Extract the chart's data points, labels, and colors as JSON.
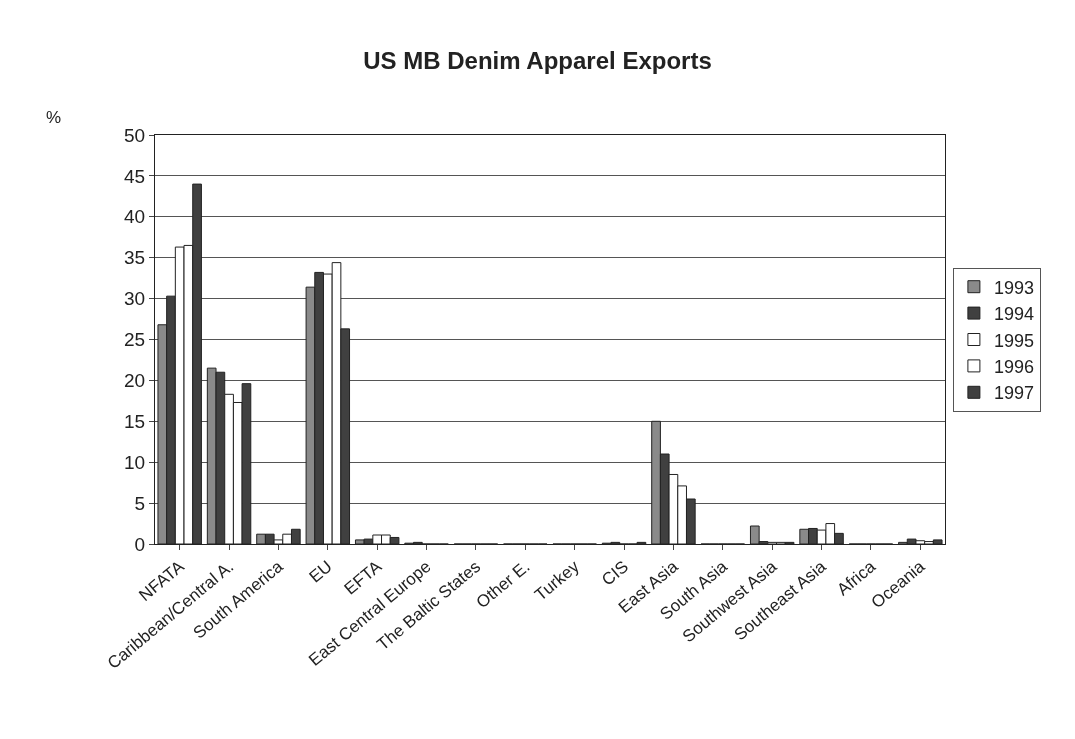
{
  "chart_data": {
    "type": "bar",
    "title": "US MB Denim Apparel Exports",
    "ylabel": "%",
    "categories": [
      "NFATA",
      "Caribbean/Central A.",
      "South America",
      "EU",
      "EFTA",
      "East Central Europe",
      "The Baltic States",
      "Other E.",
      "Turkey",
      "CIS",
      "East Asia",
      "South Asia",
      "Southwest Asia",
      "Southeast Asia",
      "Africa",
      "Oceania"
    ],
    "series": [
      {
        "name": "1993",
        "color": "#8a8a8a",
        "values": [
          26.8,
          21.5,
          1.2,
          31.4,
          0.5,
          0.1,
          0,
          0,
          0,
          0.1,
          15.0,
          0,
          2.2,
          1.8,
          0,
          0.2
        ]
      },
      {
        "name": "1994",
        "color": "#404040",
        "values": [
          30.3,
          21.0,
          1.2,
          33.2,
          0.6,
          0.2,
          0,
          0,
          0,
          0.2,
          11.0,
          0,
          0.3,
          1.9,
          0,
          0.6
        ]
      },
      {
        "name": "1995",
        "color": "#ffffff",
        "values": [
          36.3,
          18.3,
          0.5,
          33.0,
          1.1,
          0,
          0,
          0,
          0,
          0,
          8.5,
          0,
          0.2,
          1.7,
          0,
          0.4
        ]
      },
      {
        "name": "1996",
        "color": "#ffffff",
        "values": [
          36.5,
          17.3,
          1.2,
          34.4,
          1.1,
          0,
          0,
          0,
          0,
          0,
          7.1,
          0,
          0.2,
          2.5,
          0,
          0.3
        ]
      },
      {
        "name": "1997",
        "color": "#404040",
        "values": [
          44.0,
          19.6,
          1.8,
          26.3,
          0.8,
          0,
          0,
          0,
          0,
          0.2,
          5.5,
          0,
          0.2,
          1.3,
          0,
          0.5
        ]
      }
    ],
    "ylim": [
      0,
      50
    ],
    "yticks": [
      0,
      5,
      10,
      15,
      20,
      25,
      30,
      35,
      40,
      45,
      50
    ],
    "grid": "y",
    "legend": "right"
  }
}
